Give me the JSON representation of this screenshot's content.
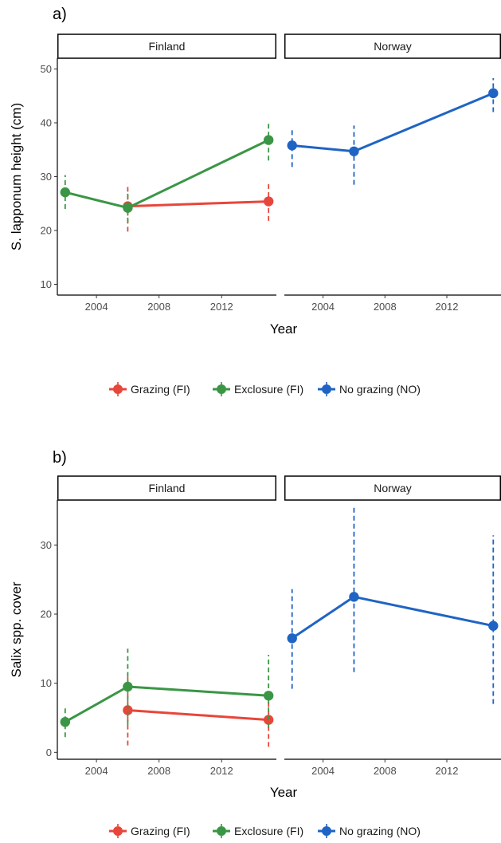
{
  "chart_data": [
    {
      "type": "line",
      "panel_label": "a)",
      "ylabel": "S. lapponum height (cm)",
      "xlabel": "Year",
      "ylim": [
        8,
        52
      ],
      "yticks": [
        10,
        20,
        30,
        40,
        50
      ],
      "xlim": [
        2001.5,
        2015.5
      ],
      "xticks": [
        2004,
        2008,
        2012
      ],
      "grid": false,
      "facets": [
        {
          "label": "Finland",
          "series": [
            {
              "name": "Grazing (FI)",
              "points": [
                {
                  "x": 2006,
                  "y": 24.5,
                  "lo": 19.8,
                  "hi": 28.7
                },
                {
                  "x": 2015,
                  "y": 25.4,
                  "lo": 21.8,
                  "hi": 29.1
                }
              ]
            },
            {
              "name": "Exclosure (FI)",
              "points": [
                {
                  "x": 2002,
                  "y": 27.1,
                  "lo": 24.0,
                  "hi": 30.3
                },
                {
                  "x": 2006,
                  "y": 24.2,
                  "lo": 21.5,
                  "hi": 27.5
                },
                {
                  "x": 2015,
                  "y": 36.8,
                  "lo": 33.0,
                  "hi": 40.4
                }
              ]
            }
          ]
        },
        {
          "label": "Norway",
          "series": [
            {
              "name": "No grazing (NO)",
              "points": [
                {
                  "x": 2002,
                  "y": 35.8,
                  "lo": 31.8,
                  "hi": 39.0
                },
                {
                  "x": 2006,
                  "y": 34.7,
                  "lo": 28.5,
                  "hi": 39.5
                },
                {
                  "x": 2015,
                  "y": 45.5,
                  "lo": 42.0,
                  "hi": 48.3
                }
              ]
            }
          ]
        }
      ],
      "legend": {
        "position": "bottom",
        "entries": [
          "Grazing (FI)",
          "Exclosure (FI)",
          "No grazing (NO)"
        ]
      }
    },
    {
      "type": "line",
      "panel_label": "b)",
      "ylabel": "Salix spp. cover",
      "xlabel": "Year",
      "ylim": [
        -1,
        36.5
      ],
      "yticks": [
        0,
        10,
        20,
        30
      ],
      "xlim": [
        2001.5,
        2015.5
      ],
      "xticks": [
        2004,
        2008,
        2012
      ],
      "grid": false,
      "facets": [
        {
          "label": "Finland",
          "series": [
            {
              "name": "Grazing (FI)",
              "points": [
                {
                  "x": 2006,
                  "y": 6.1,
                  "lo": 1.0,
                  "hi": 11.0
                },
                {
                  "x": 2015,
                  "y": 4.7,
                  "lo": 0.8,
                  "hi": 8.5
                }
              ]
            },
            {
              "name": "Exclosure (FI)",
              "points": [
                {
                  "x": 2002,
                  "y": 4.4,
                  "lo": 2.2,
                  "hi": 6.6
                },
                {
                  "x": 2006,
                  "y": 9.5,
                  "lo": 4.0,
                  "hi": 15.0
                },
                {
                  "x": 2015,
                  "y": 8.2,
                  "lo": 3.5,
                  "hi": 14.1
                }
              ]
            }
          ]
        },
        {
          "label": "Norway",
          "series": [
            {
              "name": "No grazing (NO)",
              "points": [
                {
                  "x": 2002,
                  "y": 16.5,
                  "lo": 9.2,
                  "hi": 23.6
                },
                {
                  "x": 2006,
                  "y": 22.5,
                  "lo": 11.6,
                  "hi": 35.4
                },
                {
                  "x": 2015,
                  "y": 18.3,
                  "lo": 7.0,
                  "hi": 31.4
                }
              ]
            }
          ]
        }
      ],
      "legend": {
        "position": "bottom",
        "entries": [
          "Grazing (FI)",
          "Exclosure (FI)",
          "No grazing (NO)"
        ]
      }
    }
  ],
  "colors": {
    "Grazing (FI)": "#e8463a",
    "Exclosure (FI)": "#3a9645",
    "No grazing (NO)": "#1f64c4"
  }
}
